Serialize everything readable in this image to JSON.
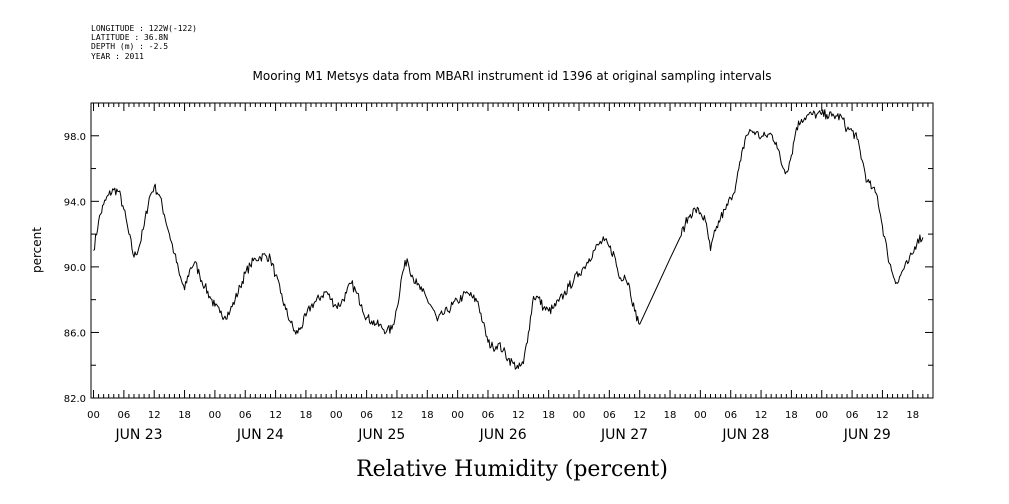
{
  "header": {
    "meta_lines": [
      "LONGITUDE : 122W(-122)",
      "LATITUDE : 36.8N",
      "DEPTH (m) : -2.5",
      "YEAR : 2011"
    ],
    "title": "Mooring M1 Metsys data from MBARI instrument id 1396 at original sampling intervals"
  },
  "chart_data": {
    "type": "line",
    "title": "Mooring M1 Metsys data from MBARI instrument id 1396 at original sampling intervals",
    "xlabel": "Relative Humidity (percent)",
    "ylabel": "percent",
    "ylim": [
      82.0,
      100.0
    ],
    "yticks": [
      "82.0",
      "86.0",
      "90.0",
      "94.0",
      "98.0"
    ],
    "xlim_hours_from_jun23_00": [
      -0.5,
      166
    ],
    "x_hour_ticks": [
      "00",
      "06",
      "12",
      "18"
    ],
    "day_labels": [
      "JUN 23",
      "JUN 24",
      "JUN 25",
      "JUN 26",
      "JUN 27",
      "JUN 28",
      "JUN 29"
    ],
    "grid": false,
    "series": [
      {
        "name": "",
        "x_unit": "hours since JUN 23 00:00",
        "points": [
          [
            0,
            91.0
          ],
          [
            1,
            92.8
          ],
          [
            2,
            93.8
          ],
          [
            3,
            94.4
          ],
          [
            4,
            94.7
          ],
          [
            5,
            94.6
          ],
          [
            6,
            93.5
          ],
          [
            7,
            92.0
          ],
          [
            8,
            90.6
          ],
          [
            9,
            91.2
          ],
          [
            10,
            92.5
          ],
          [
            11,
            94.2
          ],
          [
            12,
            94.9
          ],
          [
            13,
            94.4
          ],
          [
            14,
            93.2
          ],
          [
            15,
            92.0
          ],
          [
            16,
            90.8
          ],
          [
            17,
            89.5
          ],
          [
            18,
            88.6
          ],
          [
            19,
            89.8
          ],
          [
            20,
            90.3
          ],
          [
            21,
            89.5
          ],
          [
            22,
            88.8
          ],
          [
            23,
            88.2
          ],
          [
            24,
            87.6
          ],
          [
            25,
            87.2
          ],
          [
            26,
            87.0
          ],
          [
            27,
            87.3
          ],
          [
            28,
            88.0
          ],
          [
            29,
            88.8
          ],
          [
            30,
            89.6
          ],
          [
            31,
            90.1
          ],
          [
            32,
            90.5
          ],
          [
            33,
            90.6
          ],
          [
            34,
            90.7
          ],
          [
            35,
            90.5
          ],
          [
            36,
            89.5
          ],
          [
            37,
            88.4
          ],
          [
            38,
            87.4
          ],
          [
            39,
            86.6
          ],
          [
            40,
            85.9
          ],
          [
            41,
            86.3
          ],
          [
            42,
            87.0
          ],
          [
            43,
            87.6
          ],
          [
            44,
            87.9
          ],
          [
            45,
            88.2
          ],
          [
            46,
            88.5
          ],
          [
            47,
            88.0
          ],
          [
            48,
            87.6
          ],
          [
            49,
            87.8
          ],
          [
            50,
            88.4
          ],
          [
            51,
            89.0
          ],
          [
            52,
            88.4
          ],
          [
            53,
            87.7
          ],
          [
            54,
            86.9
          ],
          [
            55,
            86.7
          ],
          [
            56,
            86.5
          ],
          [
            57,
            86.3
          ],
          [
            58,
            86.1
          ],
          [
            59,
            86.2
          ],
          [
            60,
            87.5
          ],
          [
            61,
            89.5
          ],
          [
            62,
            90.5
          ],
          [
            63,
            89.5
          ],
          [
            64,
            88.9
          ],
          [
            65,
            88.5
          ],
          [
            66,
            88.0
          ],
          [
            67,
            87.5
          ],
          [
            68,
            86.7
          ],
          [
            69,
            87.1
          ],
          [
            70,
            87.3
          ],
          [
            71,
            87.7
          ],
          [
            72,
            87.9
          ],
          [
            73,
            88.2
          ],
          [
            74,
            88.4
          ],
          [
            75,
            88.1
          ],
          [
            76,
            87.9
          ],
          [
            77,
            86.6
          ],
          [
            78,
            85.4
          ],
          [
            79,
            85.1
          ],
          [
            80,
            85.3
          ],
          [
            81,
            84.9
          ],
          [
            82,
            84.4
          ],
          [
            83,
            84.1
          ],
          [
            84,
            83.8
          ],
          [
            85,
            84.1
          ],
          [
            86,
            86.0
          ],
          [
            87,
            88.2
          ],
          [
            88,
            88.1
          ],
          [
            89,
            87.5
          ],
          [
            90,
            87.3
          ],
          [
            91,
            87.5
          ],
          [
            92,
            87.9
          ],
          [
            93,
            88.3
          ],
          [
            94,
            88.8
          ],
          [
            95,
            89.2
          ],
          [
            96,
            89.6
          ],
          [
            97,
            90.0
          ],
          [
            98,
            90.5
          ],
          [
            99,
            91.0
          ],
          [
            100,
            91.4
          ],
          [
            101,
            91.6
          ],
          [
            102,
            91.2
          ],
          [
            103,
            90.7
          ],
          [
            104,
            89.3
          ],
          [
            105,
            89.5
          ],
          [
            106,
            88.8
          ],
          [
            107,
            87.3
          ],
          [
            108,
            86.5
          ],
          [
            111,
            88.5
          ],
          [
            114,
            90.5
          ],
          [
            116,
            91.8
          ],
          [
            117,
            92.6
          ],
          [
            118,
            93.2
          ],
          [
            119,
            93.5
          ],
          [
            120,
            93.3
          ],
          [
            121,
            92.8
          ],
          [
            122,
            91.0
          ],
          [
            123,
            92.2
          ],
          [
            124,
            93.0
          ],
          [
            125,
            93.5
          ],
          [
            126,
            94.2
          ],
          [
            127,
            95.0
          ],
          [
            128,
            96.5
          ],
          [
            129,
            98.0
          ],
          [
            130,
            98.3
          ],
          [
            131,
            98.2
          ],
          [
            132,
            97.9
          ],
          [
            133,
            98.0
          ],
          [
            134,
            98.1
          ],
          [
            135,
            97.6
          ],
          [
            136,
            96.3
          ],
          [
            137,
            95.8
          ],
          [
            138,
            96.8
          ],
          [
            139,
            98.5
          ],
          [
            140,
            99.0
          ],
          [
            141,
            99.2
          ],
          [
            142,
            99.3
          ],
          [
            143,
            99.3
          ],
          [
            144,
            99.3
          ],
          [
            145,
            99.3
          ],
          [
            146,
            99.2
          ],
          [
            147,
            99.2
          ],
          [
            148,
            99.1
          ],
          [
            149,
            98.4
          ],
          [
            150,
            98.3
          ],
          [
            151,
            97.8
          ],
          [
            152,
            96.5
          ],
          [
            153,
            95.2
          ],
          [
            154,
            94.8
          ],
          [
            155,
            94.3
          ],
          [
            156,
            92.5
          ],
          [
            157,
            90.8
          ],
          [
            158,
            89.6
          ],
          [
            159,
            89.0
          ],
          [
            160,
            89.8
          ],
          [
            161,
            90.2
          ],
          [
            162,
            90.8
          ],
          [
            163,
            91.7
          ],
          [
            164,
            91.8
          ]
        ]
      }
    ]
  }
}
